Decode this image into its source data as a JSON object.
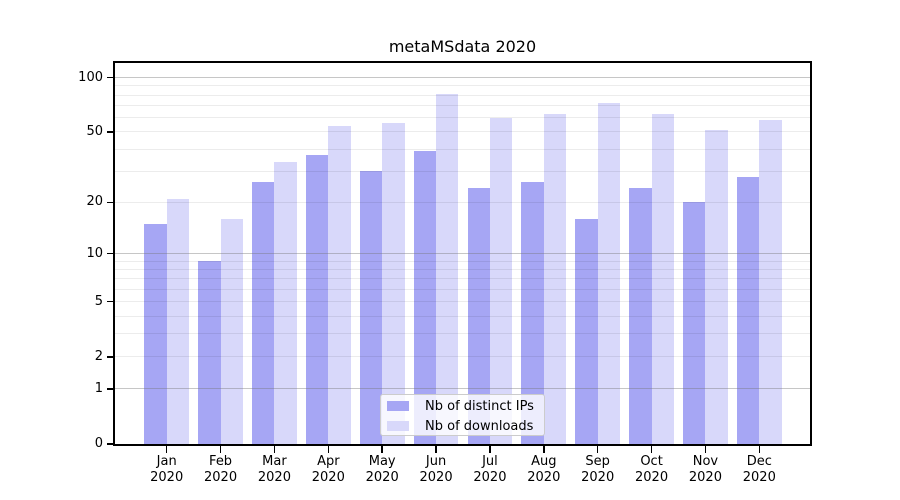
{
  "title": "metaMSdata 2020",
  "chart_data": {
    "type": "bar",
    "title": "metaMSdata 2020",
    "year": "2020",
    "categories": [
      "Jan",
      "Feb",
      "Mar",
      "Apr",
      "May",
      "Jun",
      "Jul",
      "Aug",
      "Sep",
      "Oct",
      "Nov",
      "Dec"
    ],
    "series": [
      {
        "name": "Nb of distinct IPs",
        "color": "#a6a6f4",
        "values": [
          15,
          9,
          26,
          37,
          30,
          39,
          24,
          26,
          16,
          24,
          20,
          28
        ]
      },
      {
        "name": "Nb of downloads",
        "color": "#d8d8fa",
        "values": [
          21,
          16,
          34,
          54,
          56,
          81,
          60,
          63,
          72,
          63,
          51,
          58
        ]
      }
    ],
    "xlabel": "",
    "ylabel": "",
    "yscale": "log1p",
    "ylim": [
      0,
      122
    ],
    "yticks": [
      0,
      1,
      2,
      5,
      10,
      20,
      50,
      100
    ],
    "major_gridlines": [
      1,
      10,
      100
    ],
    "minor_gridlines": [
      2,
      3,
      4,
      5,
      6,
      7,
      8,
      9,
      20,
      30,
      40,
      50,
      60,
      70,
      80,
      90
    ],
    "grid": true,
    "legend_position": "bottom-center"
  },
  "legend": {
    "items": [
      "Nb of distinct IPs",
      "Nb of downloads"
    ]
  },
  "colors": {
    "ips_bar": "#a6a6f4",
    "downloads_bar": "#d8d8fa",
    "major_grid": "#c8c8c8",
    "minor_grid": "#ececec",
    "axis": "#000000",
    "legend_border": "#cccccc",
    "background": "#ffffff"
  }
}
